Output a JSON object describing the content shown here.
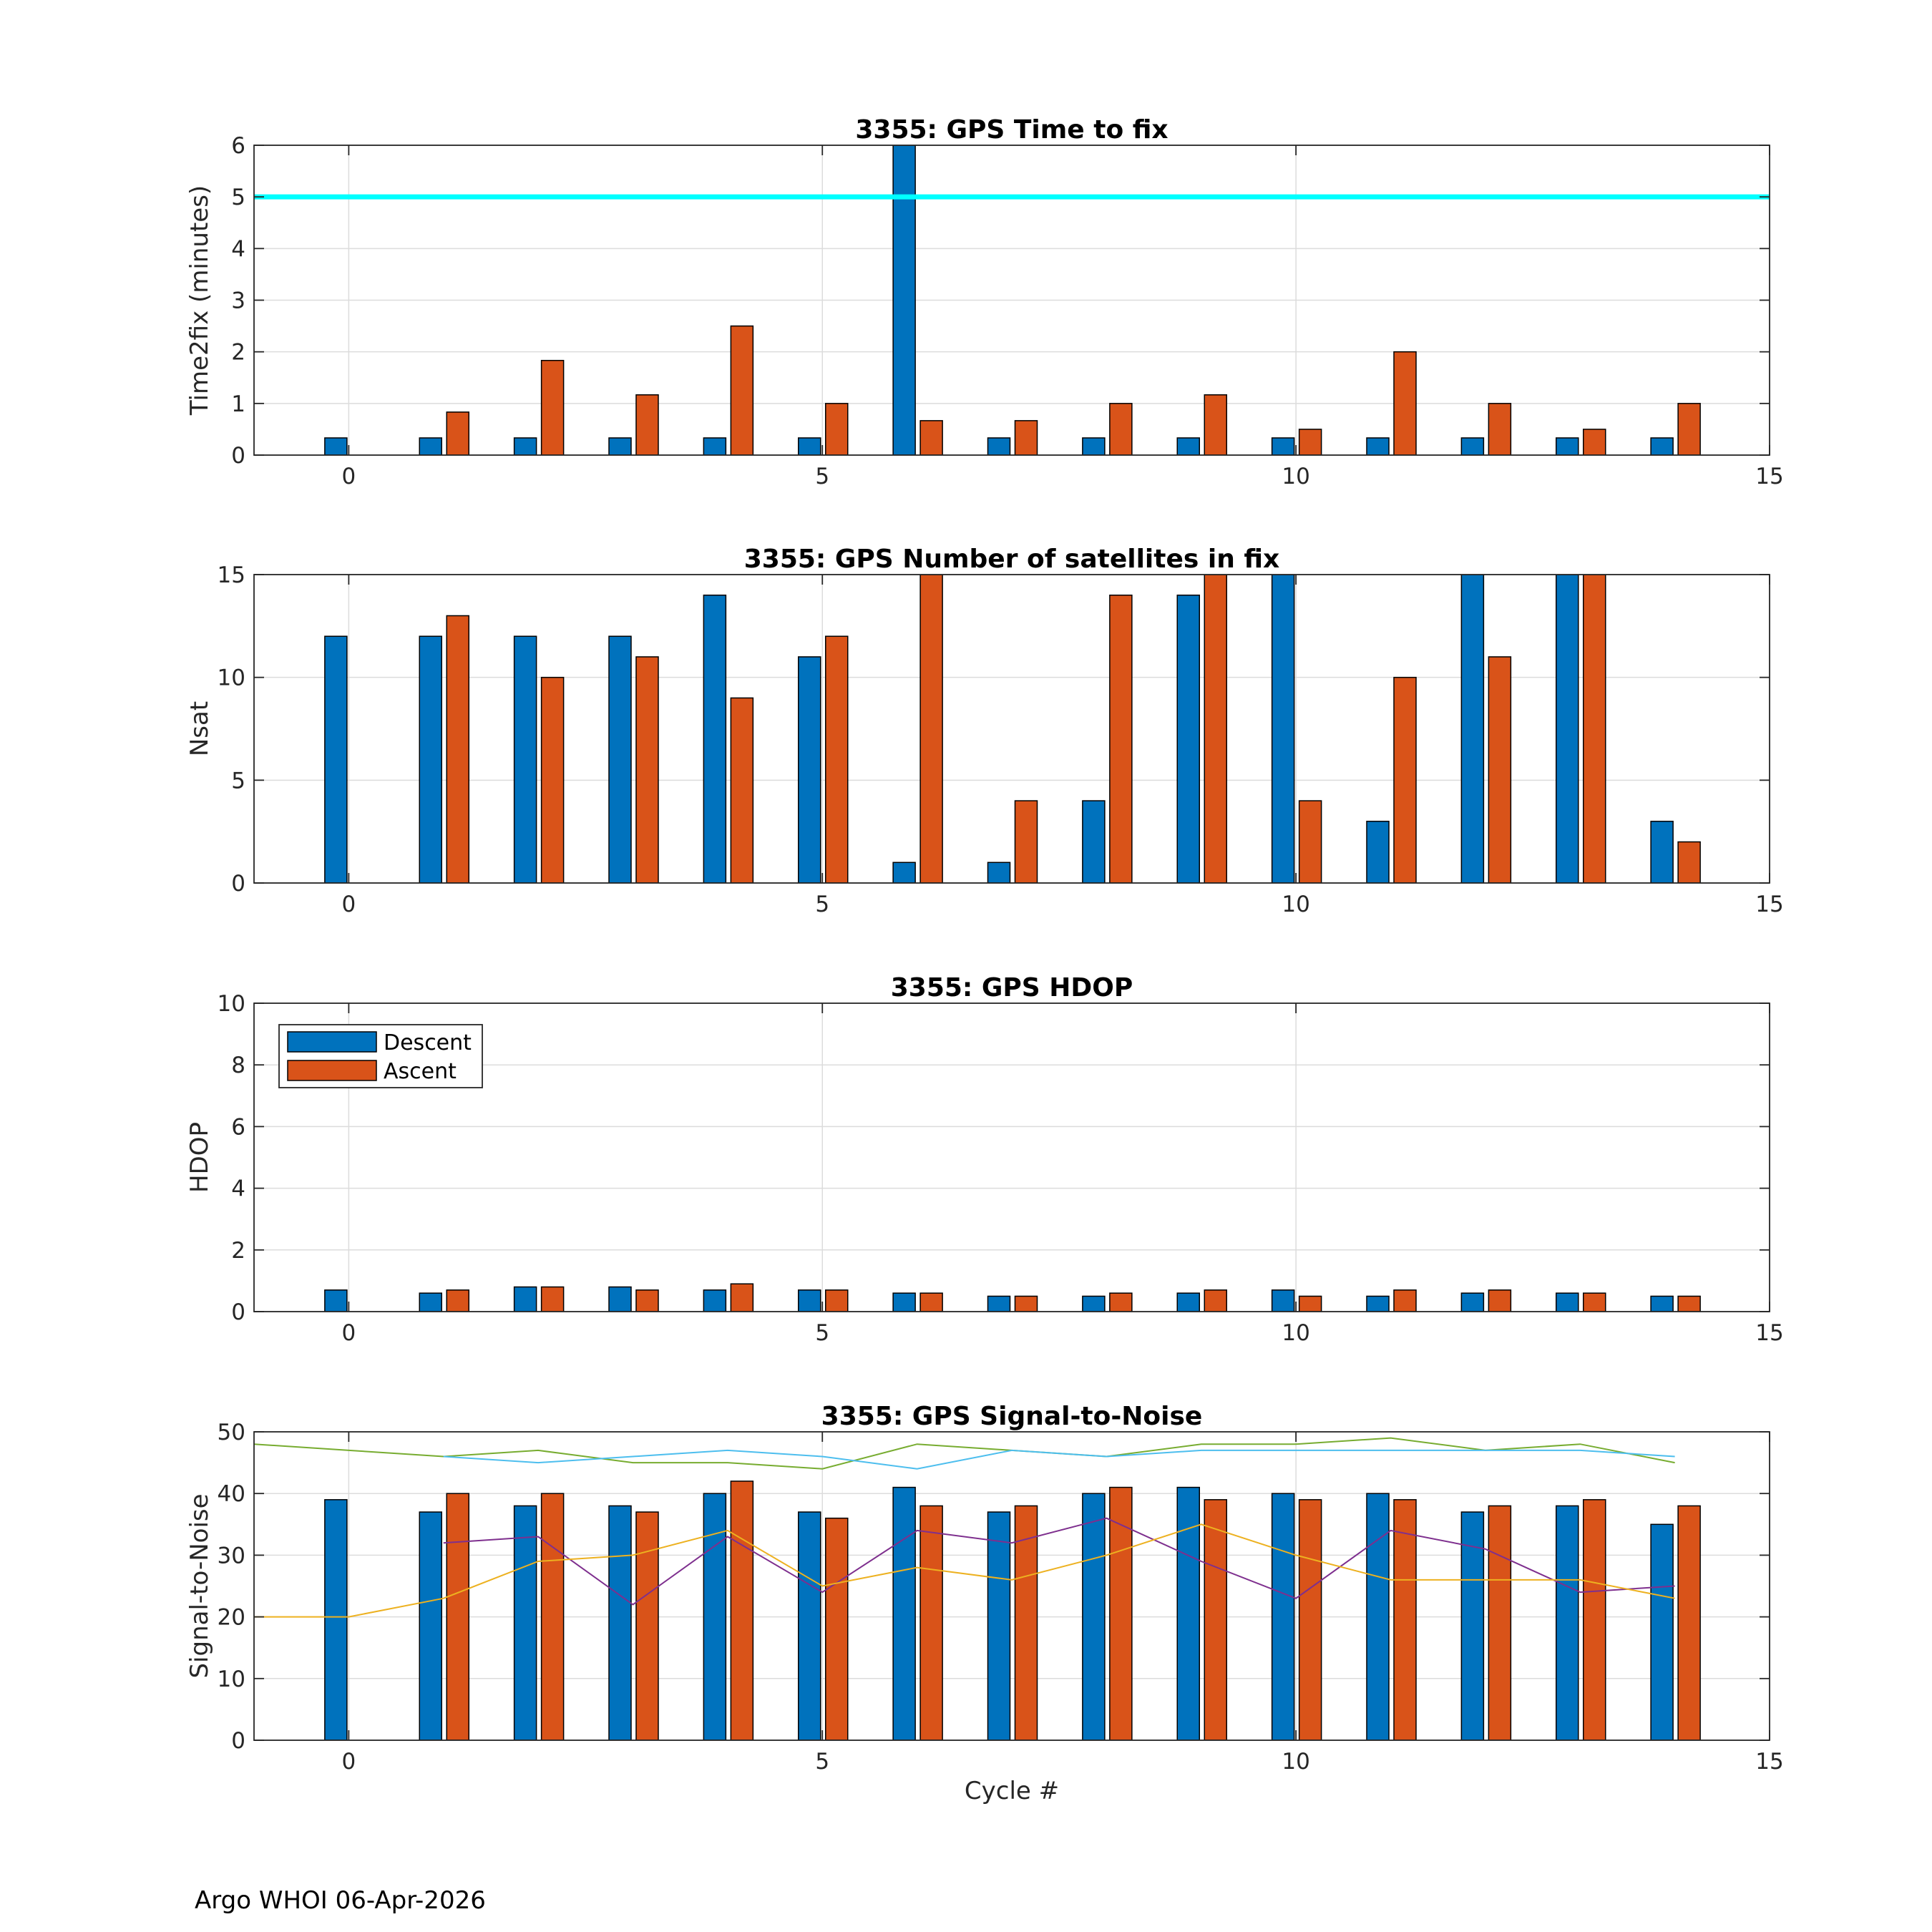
{
  "footer": "Argo WHOI 06-Apr-2026",
  "legend": {
    "descent_label": "Descent",
    "ascent_label": "Ascent"
  },
  "colors": {
    "descent": "#0072bd",
    "ascent": "#d95319",
    "threshold": "#00ffff",
    "line_green": "#77ac30",
    "line_cyan": "#4dbeee",
    "line_purple": "#7e2f8e",
    "line_orange": "#edb120"
  },
  "chart_data": [
    {
      "type": "bar",
      "title": "3355: GPS Time to fix",
      "xlabel": "",
      "ylabel": "Time2fix (minutes)",
      "xlim": [
        -1,
        15
      ],
      "ylim": [
        0,
        6
      ],
      "xticks": [
        0,
        5,
        10,
        15
      ],
      "yticks": [
        0,
        1,
        2,
        3,
        4,
        5,
        6
      ],
      "grid": true,
      "x": [
        0,
        1,
        2,
        3,
        4,
        5,
        6,
        7,
        8,
        9,
        10,
        11,
        12,
        13,
        14
      ],
      "series": [
        {
          "name": "Descent",
          "values": [
            0.333,
            0.333,
            0.333,
            0.333,
            0.333,
            0.333,
            6,
            0.333,
            0.333,
            0.333,
            0.333,
            0.333,
            0.333,
            0.333,
            0.333
          ]
        },
        {
          "name": "Ascent",
          "values": [
            0,
            0.833,
            1.833,
            1.167,
            2.5,
            1,
            0.667,
            0.667,
            1,
            1.167,
            0.5,
            2,
            1,
            0.5,
            1
          ]
        }
      ],
      "reference_line": {
        "y": 5
      }
    },
    {
      "type": "bar",
      "title": "3355: GPS Number of satellites in fix",
      "xlabel": "",
      "ylabel": "Nsat",
      "xlim": [
        -1,
        15
      ],
      "ylim": [
        0,
        15
      ],
      "xticks": [
        0,
        5,
        10,
        15
      ],
      "yticks": [
        0,
        5,
        10,
        15
      ],
      "grid": true,
      "x": [
        0,
        1,
        2,
        3,
        4,
        5,
        6,
        7,
        8,
        9,
        10,
        11,
        12,
        13,
        14
      ],
      "series": [
        {
          "name": "Descent",
          "values": [
            12,
            12,
            12,
            12,
            14,
            11,
            1,
            1,
            4,
            14,
            15,
            3,
            15,
            15,
            3
          ]
        },
        {
          "name": "Ascent",
          "values": [
            0,
            13,
            10,
            11,
            9,
            12,
            15,
            4,
            14,
            15,
            4,
            10,
            11,
            15,
            2
          ]
        }
      ]
    },
    {
      "type": "bar",
      "title": "3355: GPS HDOP",
      "xlabel": "",
      "ylabel": "HDOP",
      "xlim": [
        -1,
        15
      ],
      "ylim": [
        0,
        10
      ],
      "xticks": [
        0,
        5,
        10,
        15
      ],
      "yticks": [
        0,
        2,
        4,
        6,
        8,
        10
      ],
      "grid": true,
      "legend": "top-left",
      "x": [
        0,
        1,
        2,
        3,
        4,
        5,
        6,
        7,
        8,
        9,
        10,
        11,
        12,
        13,
        14
      ],
      "series": [
        {
          "name": "Descent",
          "values": [
            0.7,
            0.6,
            0.8,
            0.8,
            0.7,
            0.7,
            0.6,
            0.5,
            0.5,
            0.6,
            0.7,
            0.5,
            0.6,
            0.6,
            0.5
          ]
        },
        {
          "name": "Ascent",
          "values": [
            0,
            0.7,
            0.8,
            0.7,
            0.9,
            0.7,
            0.6,
            0.5,
            0.6,
            0.7,
            0.5,
            0.7,
            0.7,
            0.6,
            0.5
          ]
        }
      ]
    },
    {
      "type": "bar",
      "title": "3355: GPS Signal-to-Noise",
      "xlabel": "Cycle #",
      "ylabel": "Signal-to-Noise",
      "xlim": [
        -1,
        15
      ],
      "ylim": [
        0,
        50
      ],
      "xticks": [
        0,
        5,
        10,
        15
      ],
      "yticks": [
        0,
        10,
        20,
        30,
        40,
        50
      ],
      "grid": true,
      "x": [
        0,
        1,
        2,
        3,
        4,
        5,
        6,
        7,
        8,
        9,
        10,
        11,
        12,
        13,
        14
      ],
      "series": [
        {
          "name": "Descent",
          "values": [
            39,
            37,
            38,
            38,
            40,
            37,
            41,
            37,
            40,
            41,
            40,
            40,
            37,
            38,
            35
          ]
        },
        {
          "name": "Ascent",
          "values": [
            0,
            40,
            40,
            37,
            42,
            36,
            38,
            38,
            41,
            39,
            39,
            39,
            38,
            39,
            38
          ]
        }
      ],
      "lines": [
        {
          "color": "#77ac30",
          "x": [
            -1,
            0,
            1,
            2,
            3,
            4,
            5,
            6,
            7,
            8,
            9,
            10,
            11,
            12,
            13,
            14
          ],
          "values": [
            48,
            47,
            46,
            47,
            45,
            45,
            44,
            48,
            47,
            46,
            48,
            48,
            49,
            47,
            48,
            45
          ]
        },
        {
          "color": "#4dbeee",
          "x": [
            1,
            2,
            3,
            4,
            5,
            6,
            7,
            8,
            9,
            10,
            11,
            12,
            13,
            14
          ],
          "values": [
            46,
            45,
            46,
            47,
            46,
            44,
            47,
            46,
            47,
            47,
            47,
            47,
            47,
            46
          ]
        },
        {
          "color": "#7e2f8e",
          "x": [
            1,
            2,
            3,
            4,
            5,
            6,
            7,
            8,
            9,
            10,
            11,
            12,
            13,
            14
          ],
          "values": [
            32,
            33,
            22,
            33,
            24,
            34,
            32,
            36,
            29,
            23,
            34,
            31,
            24,
            25
          ]
        },
        {
          "color": "#edb120",
          "x": [
            -1,
            0,
            1,
            2,
            3,
            4,
            5,
            6,
            7,
            8,
            9,
            10,
            11,
            12,
            13,
            14
          ],
          "values": [
            20,
            20,
            23,
            29,
            30,
            34,
            25,
            28,
            26,
            30,
            35,
            30,
            26,
            26,
            26,
            23
          ]
        }
      ]
    }
  ]
}
